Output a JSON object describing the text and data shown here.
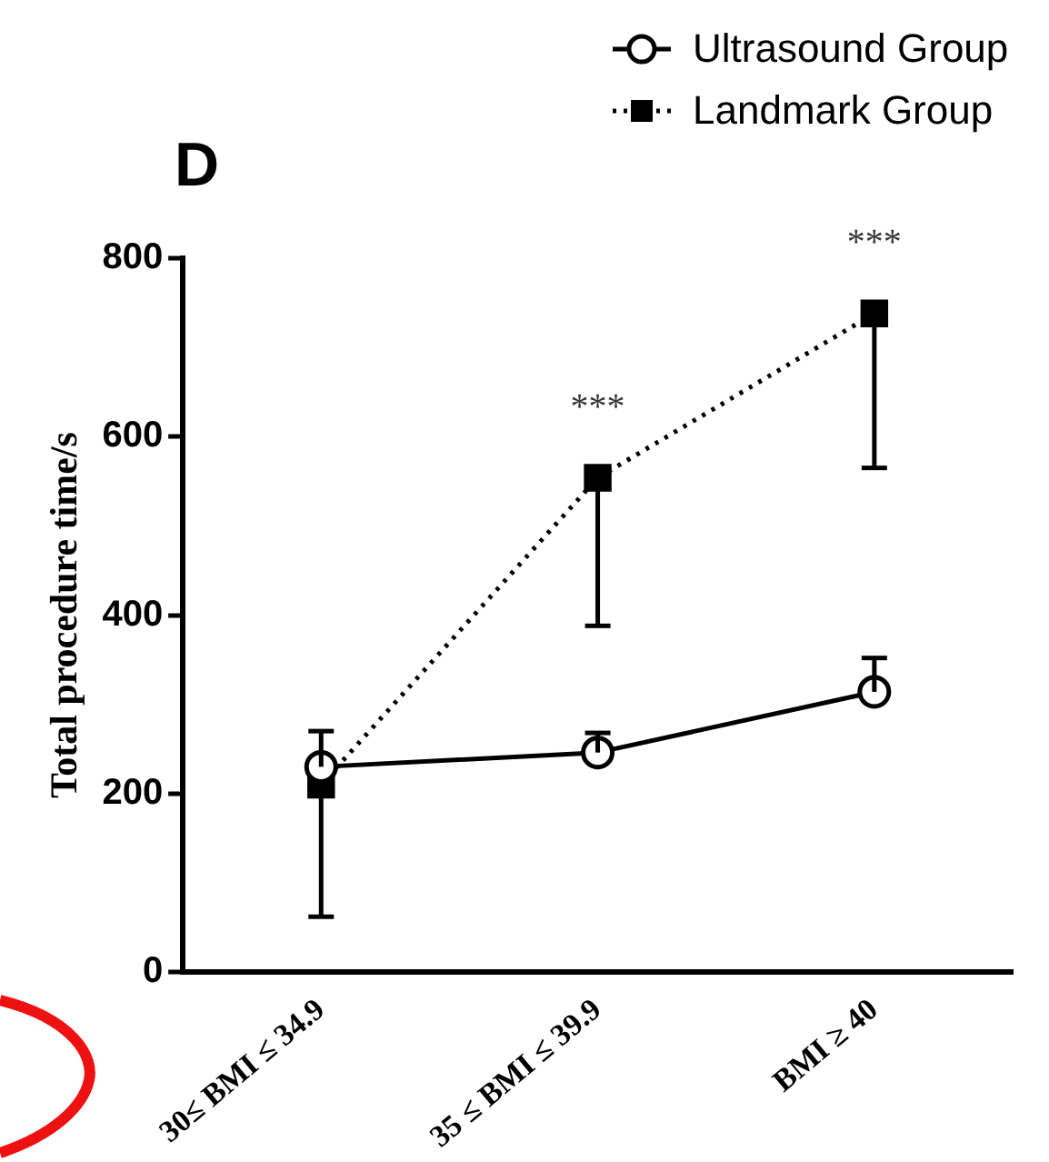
{
  "chart_data": {
    "type": "line",
    "title": "D",
    "ylabel": "Total procedure time/s",
    "categories": [
      "30≤ BMI ≤ 34.9",
      "35 ≤ BMI ≤ 39.9",
      "BMI ≥ 40"
    ],
    "ylim": [
      0,
      800
    ],
    "yticks": [
      0,
      200,
      400,
      600,
      800
    ],
    "grid": false,
    "legend": "top right",
    "series": [
      {
        "name": "Ultrasound Group",
        "color": "#000000",
        "marker": "circle",
        "line_style": "solid",
        "values": [
          230,
          246,
          314
        ],
        "errors": [
          [
            230,
            270
          ],
          [
            246,
            268
          ],
          [
            314,
            352
          ]
        ]
      },
      {
        "name": "Landmark Group",
        "color": "#000000",
        "marker": "square",
        "line_style": "dotted",
        "values": [
          210,
          554,
          738
        ],
        "errors": [
          [
            62,
            210
          ],
          [
            388,
            554
          ],
          [
            565,
            738
          ]
        ]
      }
    ],
    "annotations": [
      "***",
      "***"
    ]
  }
}
